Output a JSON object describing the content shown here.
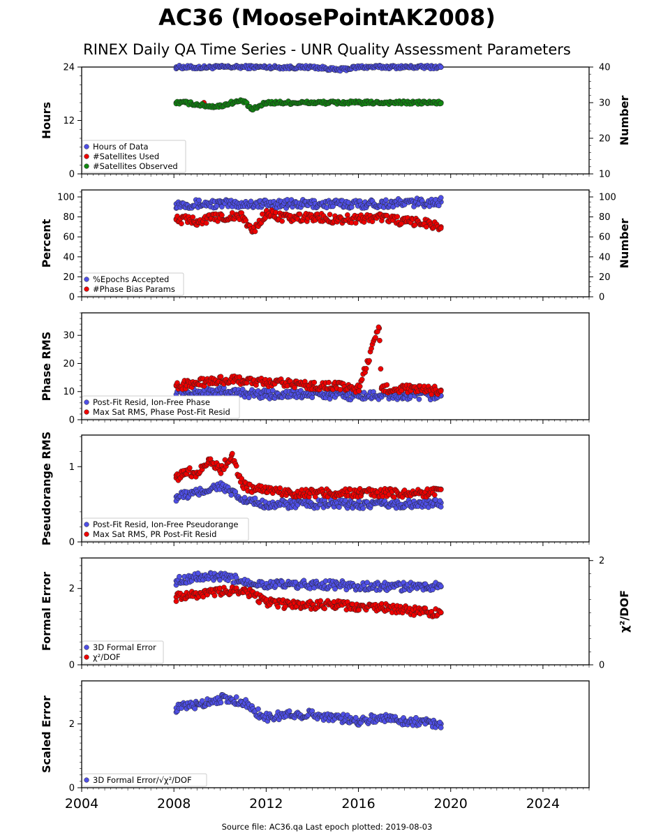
{
  "title": "AC36 (MoosePointAK2008)",
  "subtitle": "RINEX Daily QA Time Series - UNR Quality Assessment Parameters",
  "source": "Source file: AC36.qa Last epoch plotted: 2019-08-03",
  "colors": {
    "blue": "#4f4fe6",
    "red": "#ee0000",
    "green": "#118811"
  },
  "chart_data": [
    {
      "type": "scatter",
      "xlim": [
        2004,
        2026
      ],
      "xticks": [
        "2004",
        "2008",
        "2012",
        "2016",
        "2020",
        "2024"
      ],
      "ylabel": "Hours",
      "ylim": [
        0,
        24
      ],
      "yticks": [
        "0",
        "12",
        "24"
      ],
      "y2label": "Number",
      "y2lim": [
        10,
        40
      ],
      "y2ticks": [
        "10",
        "20",
        "30",
        "40"
      ],
      "legend": [
        "Hours of Data",
        "#Satellites Used",
        "#Satellites Observed"
      ],
      "series": [
        {
          "name": "Hours of Data",
          "axis": "left",
          "x": [
            2008.1,
            2009.0,
            2010.0,
            2011.0,
            2012.0,
            2013.0,
            2014.0,
            2014.8,
            2015.0,
            2015.5,
            2016.0,
            2017.0,
            2018.0,
            2019.0,
            2019.58
          ],
          "y": [
            24,
            23.9,
            24,
            24,
            24,
            23.9,
            24,
            23.6,
            23.3,
            23.6,
            24,
            24,
            24,
            24,
            24
          ]
        },
        {
          "name": "#Satellites Used",
          "axis": "right",
          "x": [
            2009.3
          ],
          "y": [
            30
          ]
        },
        {
          "name": "#Satellites Observed",
          "axis": "right",
          "x": [
            2008.1,
            2008.5,
            2009.0,
            2009.5,
            2010.0,
            2010.5,
            2011.0,
            2011.4,
            2012.0,
            2012.5,
            2013.0,
            2014.0,
            2015.0,
            2016.0,
            2017.0,
            2018.0,
            2019.0,
            2019.58
          ],
          "y": [
            30,
            30,
            29.5,
            29,
            29,
            30,
            30.5,
            28,
            30,
            30,
            30,
            30,
            30,
            30,
            30,
            30,
            30,
            30
          ]
        }
      ]
    },
    {
      "type": "scatter",
      "ylabel": "Percent",
      "ylim": [
        0,
        107
      ],
      "yticks": [
        "0",
        "20",
        "40",
        "60",
        "80",
        "100"
      ],
      "y2label": "Number",
      "y2lim": [
        0,
        107
      ],
      "y2ticks": [
        "0",
        "20",
        "40",
        "60",
        "80",
        "100"
      ],
      "legend": [
        "%Epochs Accepted",
        "#Phase Bias Params"
      ],
      "series": [
        {
          "name": "%Epochs Accepted",
          "axis": "left",
          "x": [
            2008.1,
            2010.0,
            2012.0,
            2014.0,
            2016.0,
            2018.0,
            2019.58
          ],
          "y": [
            93,
            93,
            93,
            93,
            93,
            94,
            95
          ]
        },
        {
          "name": "#Phase Bias Params",
          "axis": "right",
          "x": [
            2008.1,
            2009.0,
            2010.0,
            2011.0,
            2011.4,
            2012.0,
            2013.0,
            2014.0,
            2015.0,
            2016.0,
            2017.0,
            2018.0,
            2019.0,
            2019.58
          ],
          "y": [
            78,
            76,
            80,
            80,
            65,
            84,
            78,
            80,
            78,
            78,
            80,
            75,
            74,
            70
          ]
        }
      ]
    },
    {
      "type": "scatter",
      "ylabel": "Phase RMS",
      "ylim": [
        0,
        38
      ],
      "yticks": [
        "0",
        "10",
        "20",
        "30"
      ],
      "legend": [
        "Post-Fit Resid, Ion-Free Phase",
        "Max Sat RMS, Phase Post-Fit Resid"
      ],
      "series": [
        {
          "name": "Post-Fit Resid, Ion-Free Phase",
          "x": [
            2008.1,
            2010.0,
            2012.0,
            2014.0,
            2016.0,
            2018.0,
            2019.58
          ],
          "y": [
            9,
            10,
            9,
            9,
            8.5,
            8.5,
            8.5
          ]
        },
        {
          "name": "Max Sat RMS, Phase Post-Fit Resid",
          "x": [
            2008.1,
            2009.0,
            2010.0,
            2011.0,
            2012.0,
            2013.0,
            2014.0,
            2015.0,
            2016.0,
            2016.9,
            2017.0,
            2018.0,
            2019.0,
            2019.58
          ],
          "y": [
            12,
            13,
            14,
            14,
            13,
            13,
            12,
            12,
            11,
            32.5,
            11,
            11,
            10.5,
            10.5
          ]
        }
      ]
    },
    {
      "type": "scatter",
      "ylabel": "Pseudorange RMS",
      "ylim": [
        0,
        1.42
      ],
      "yticks": [
        "0",
        "1"
      ],
      "legend": [
        "Post-Fit Resid, Ion-Free Pseudorange",
        "Max Sat RMS, PR Post-Fit Resid"
      ],
      "series": [
        {
          "name": "Post-Fit Resid, Ion-Free Pseudorange",
          "x": [
            2008.1,
            2009.0,
            2010.0,
            2011.0,
            2012.0,
            2013.0,
            2014.0,
            2015.0,
            2016.0,
            2017.0,
            2018.0,
            2019.0,
            2019.58
          ],
          "y": [
            0.6,
            0.65,
            0.75,
            0.55,
            0.5,
            0.5,
            0.5,
            0.5,
            0.5,
            0.5,
            0.5,
            0.5,
            0.52
          ]
        },
        {
          "name": "Max Sat RMS, PR Post-Fit Resid",
          "x": [
            2008.1,
            2008.5,
            2009.0,
            2009.5,
            2010.0,
            2010.5,
            2011.0,
            2011.5,
            2012.0,
            2013.0,
            2014.0,
            2015.0,
            2016.0,
            2017.0,
            2018.0,
            2019.0,
            2019.58
          ],
          "y": [
            0.85,
            0.95,
            0.9,
            1.1,
            0.95,
            1.15,
            0.75,
            0.7,
            0.7,
            0.65,
            0.65,
            0.65,
            0.65,
            0.65,
            0.65,
            0.65,
            0.7
          ]
        }
      ]
    },
    {
      "type": "scatter",
      "ylabel": "Formal Error",
      "ylim": [
        0,
        2.8
      ],
      "yticks": [
        "0",
        "2"
      ],
      "y2label": "χ²/DOF",
      "y2lim": [
        0,
        2.05
      ],
      "y2ticks": [
        "0",
        "2"
      ],
      "legend": [
        "3D Formal Error",
        "χ²/DOF"
      ],
      "series": [
        {
          "name": "3D Formal Error",
          "axis": "left",
          "x": [
            2008.1,
            2009.0,
            2010.0,
            2011.0,
            2012.0,
            2013.0,
            2014.0,
            2015.0,
            2016.0,
            2017.0,
            2018.0,
            2019.0,
            2019.58
          ],
          "y": [
            2.2,
            2.3,
            2.3,
            2.2,
            2.1,
            2.1,
            2.1,
            2.1,
            2.05,
            2.05,
            2.05,
            2.05,
            2.05
          ]
        },
        {
          "name": "χ²/DOF",
          "axis": "right",
          "x": [
            2008.1,
            2009.0,
            2010.0,
            2011.0,
            2012.0,
            2013.0,
            2014.0,
            2015.0,
            2016.0,
            2017.0,
            2018.0,
            2019.0,
            2019.58
          ],
          "y": [
            1.3,
            1.35,
            1.4,
            1.45,
            1.2,
            1.15,
            1.15,
            1.15,
            1.1,
            1.1,
            1.05,
            1.0,
            1.0
          ]
        }
      ]
    },
    {
      "type": "scatter",
      "ylabel": "Scaled Error",
      "ylim": [
        0,
        3.35
      ],
      "yticks": [
        "0",
        "2"
      ],
      "legend": [
        "3D Formal Error/√χ²/DOF"
      ],
      "series": [
        {
          "name": "3D Formal Error/√χ²/DOF",
          "x": [
            2008.1,
            2009.0,
            2010.0,
            2011.0,
            2011.5,
            2012.0,
            2013.0,
            2014.0,
            2015.0,
            2016.0,
            2017.0,
            2018.0,
            2019.0,
            2019.58
          ],
          "y": [
            2.5,
            2.6,
            2.8,
            2.7,
            2.4,
            2.2,
            2.3,
            2.3,
            2.2,
            2.1,
            2.2,
            2.1,
            2.05,
            2.0
          ]
        }
      ]
    }
  ]
}
